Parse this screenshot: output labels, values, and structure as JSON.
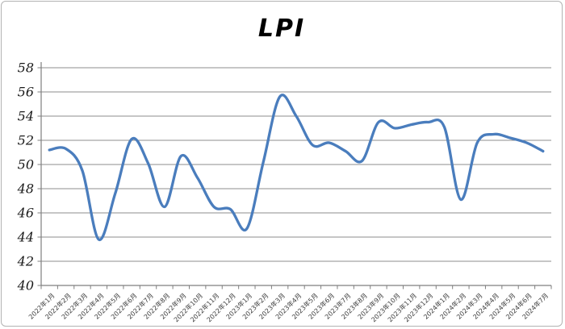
{
  "chart_data": {
    "type": "line",
    "title": "LPI",
    "categories": [
      "2022年1月",
      "2022年2月",
      "2022年3月",
      "2022年4月",
      "2022年5月",
      "2022年6月",
      "2022年7月",
      "2022年8月",
      "2022年9月",
      "2022年10月",
      "2022年11月",
      "2022年12月",
      "2023年1月",
      "2023年2月",
      "2023年3月",
      "2023年4月",
      "2023年5月",
      "2023年6月",
      "2023年7月",
      "2023年8月",
      "2023年9月",
      "2023年10月",
      "2023年11月",
      "2023年12月",
      "2024年1月",
      "2024年2月",
      "2024年3月",
      "2024年4月",
      "2024年5月",
      "2024年6月",
      "2024年7月"
    ],
    "values": [
      51.2,
      51.3,
      49.5,
      43.8,
      47.6,
      52.1,
      50.1,
      46.5,
      50.7,
      48.9,
      46.5,
      46.3,
      44.7,
      50.2,
      55.6,
      54.0,
      51.6,
      51.8,
      51.1,
      50.3,
      53.5,
      53.0,
      53.3,
      53.5,
      53.1,
      47.1,
      51.8,
      52.5,
      52.2,
      51.8,
      51.1
    ],
    "xlabel": "",
    "ylabel": "",
    "ylim": [
      40,
      58
    ],
    "y_ticks": [
      58,
      56,
      54,
      52,
      50,
      48,
      46,
      44,
      42,
      40
    ],
    "grid": true,
    "legend": false,
    "x_tick_rotation": -45,
    "line_color": "#4a7dbd",
    "line_smooth": true
  },
  "colors": {
    "gridline": "#8c8c8c",
    "axis": "#7f7f7f",
    "title": "#000000",
    "y_label": "#1a1a1a",
    "x_label": "#3d3d3d",
    "background": "#ffffff",
    "border": "#b3b3b3"
  }
}
